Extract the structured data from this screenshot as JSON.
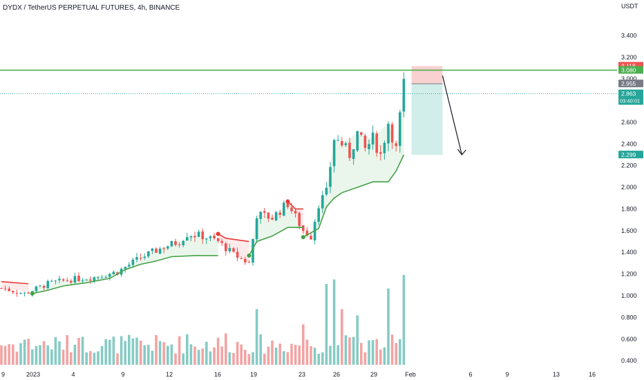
{
  "header": {
    "title": "DYDX / TetherUS PERPETUAL FUTURES, 4h, BINANCE"
  },
  "colors": {
    "up": "#26a69a",
    "down": "#ef5350",
    "volume_up": "#86cbc4",
    "volume_down": "#f3a3a3",
    "supertrend_up": "#43a047",
    "supertrend_down": "#e53935",
    "fill_up": "#e8f5e9",
    "fill_down": "#fde8e8",
    "resistance_line": "#4caf50",
    "stop_zone": "#f8c9c9",
    "target_zone": "#c9ebe6",
    "axis_text": "#131722"
  },
  "chart_data": {
    "type": "candlestick",
    "title": "DYDX / TetherUS PERPETUAL FUTURES, 4h, BINANCE",
    "currency": "USDT",
    "ylim": [
      0.35,
      3.6
    ],
    "y_ticks": [
      "3.400",
      "3.200",
      "3.000",
      "2.800",
      "2.600",
      "2.400",
      "2.200",
      "2.000",
      "1.800",
      "1.600",
      "1.400",
      "1.200",
      "1.000",
      "0.800",
      "0.600",
      "0.400"
    ],
    "x_ticks": [
      "9",
      "2023",
      "4",
      "9",
      "12",
      "16",
      "19",
      "23",
      "26",
      "29",
      "Feb",
      "6",
      "9",
      "13",
      "16"
    ],
    "price_path": [
      [
        0,
        1.07
      ],
      [
        6,
        1.02
      ],
      [
        12,
        1.11
      ],
      [
        18,
        1.15
      ],
      [
        24,
        1.17
      ],
      [
        30,
        1.22
      ],
      [
        36,
        1.35
      ],
      [
        42,
        1.45
      ],
      [
        46,
        1.5
      ],
      [
        48,
        1.57
      ],
      [
        52,
        1.55
      ],
      [
        56,
        1.5
      ],
      [
        60,
        1.38
      ],
      [
        64,
        1.3
      ],
      [
        66,
        1.75
      ],
      [
        70,
        1.72
      ],
      [
        74,
        1.85
      ],
      [
        78,
        1.6
      ],
      [
        80,
        1.55
      ],
      [
        82,
        1.85
      ],
      [
        84,
        1.95
      ],
      [
        86,
        2.45
      ],
      [
        88,
        2.4
      ],
      [
        90,
        2.3
      ],
      [
        92,
        2.5
      ],
      [
        94,
        2.35
      ],
      [
        96,
        2.45
      ],
      [
        98,
        2.3
      ],
      [
        100,
        2.6
      ],
      [
        102,
        2.35
      ],
      [
        104,
        2.95
      ]
    ],
    "candle_count": 105,
    "supertrend": [
      {
        "trend": "down",
        "points": [
          [
            0,
            1.13
          ],
          [
            7,
            1.11
          ]
        ]
      },
      {
        "trend": "up",
        "points": [
          [
            8,
            1.02
          ],
          [
            12,
            1.05
          ],
          [
            16,
            1.09
          ],
          [
            22,
            1.12
          ],
          [
            28,
            1.16
          ],
          [
            32,
            1.24
          ],
          [
            36,
            1.29
          ],
          [
            40,
            1.32
          ],
          [
            44,
            1.36
          ],
          [
            50,
            1.37
          ],
          [
            56,
            1.37
          ]
        ]
      },
      {
        "trend": "down",
        "points": [
          [
            56,
            1.57
          ],
          [
            58,
            1.53
          ],
          [
            64,
            1.5
          ]
        ]
      },
      {
        "trend": "up",
        "points": [
          [
            64,
            1.37
          ],
          [
            66,
            1.5
          ],
          [
            70,
            1.55
          ],
          [
            74,
            1.63
          ],
          [
            78,
            1.63
          ]
        ]
      },
      {
        "trend": "down",
        "points": [
          [
            74,
            1.87
          ],
          [
            76,
            1.8
          ],
          [
            78,
            1.8
          ]
        ]
      },
      {
        "trend": "up",
        "points": [
          [
            78,
            1.54
          ],
          [
            80,
            1.58
          ],
          [
            82,
            1.62
          ],
          [
            84,
            1.82
          ],
          [
            86,
            1.9
          ],
          [
            88,
            1.95
          ],
          [
            92,
            2.0
          ],
          [
            96,
            2.05
          ],
          [
            100,
            2.05
          ],
          [
            102,
            2.15
          ],
          [
            104,
            2.3
          ]
        ]
      }
    ],
    "signals": [
      {
        "type": "buy",
        "x": 8,
        "price": 1.02
      },
      {
        "type": "sell",
        "x": 56,
        "price": 1.57
      },
      {
        "type": "buy",
        "x": 64,
        "price": 1.37
      },
      {
        "type": "sell",
        "x": 74,
        "price": 1.87
      },
      {
        "type": "buy",
        "x": 78,
        "price": 1.54
      }
    ],
    "volume_scale": [
      0,
      1.0
    ],
    "volume_peaks": [
      {
        "x": 6,
        "v": 0.28
      },
      {
        "x": 20,
        "v": 0.3
      },
      {
        "x": 36,
        "v": 0.27
      },
      {
        "x": 48,
        "v": 0.34
      },
      {
        "x": 58,
        "v": 0.35
      },
      {
        "x": 66,
        "v": 0.62
      },
      {
        "x": 78,
        "v": 0.45
      },
      {
        "x": 84,
        "v": 0.9
      },
      {
        "x": 86,
        "v": 0.95
      },
      {
        "x": 88,
        "v": 0.62
      },
      {
        "x": 92,
        "v": 0.55
      },
      {
        "x": 100,
        "v": 0.85
      },
      {
        "x": 104,
        "v": 1.0
      }
    ],
    "resistance_level": 3.08,
    "short_position": {
      "entry": 2.955,
      "stop": 3.118,
      "target": 2.299,
      "start_x": 106,
      "end_x": 114
    },
    "arrow": {
      "from": [
        114,
        3.03
      ],
      "to": [
        119,
        2.3
      ]
    },
    "price_labels": [
      {
        "value": "3.118",
        "price": 3.118,
        "color": "#ef5350"
      },
      {
        "value": "3.080",
        "price": 3.08,
        "color": "#4caf50"
      },
      {
        "value": "2.955",
        "price": 2.955,
        "color": "#787b86"
      },
      {
        "value": "2.863",
        "price": 2.863,
        "color": "#26a69a",
        "sub": "03:40:01"
      },
      {
        "value": "2.299",
        "price": 2.299,
        "color": "#26a69a"
      }
    ]
  }
}
